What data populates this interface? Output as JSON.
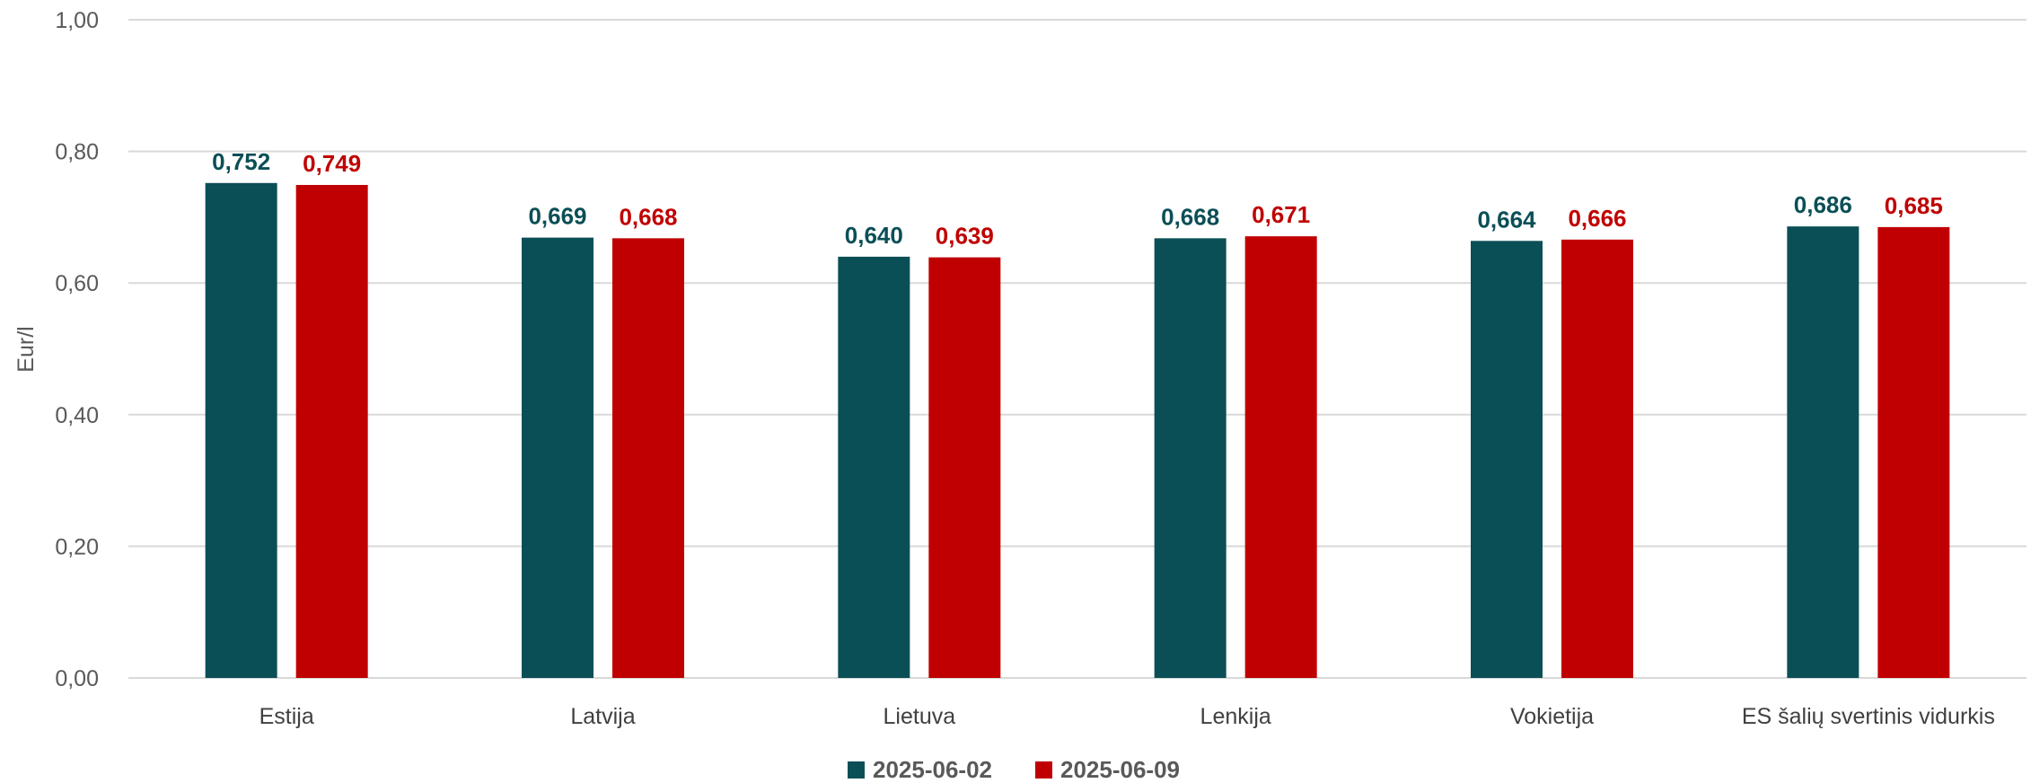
{
  "chart_data": {
    "type": "bar",
    "categories": [
      "Estija",
      "Latvija",
      "Lietuva",
      "Lenkija",
      "Vokietija",
      "ES šalių svertinis vidurkis"
    ],
    "series": [
      {
        "name": "2025-06-02",
        "color": "#0b4f56",
        "values": [
          0.752,
          0.669,
          0.64,
          0.668,
          0.664,
          0.686
        ],
        "labels": [
          "0,752",
          "0,669",
          "0,640",
          "0,668",
          "0,664",
          "0,686"
        ]
      },
      {
        "name": "2025-06-09",
        "color": "#c00000",
        "values": [
          0.749,
          0.668,
          0.639,
          0.671,
          0.666,
          0.685
        ],
        "labels": [
          "0,749",
          "0,668",
          "0,639",
          "0,671",
          "0,666",
          "0,685"
        ]
      }
    ],
    "ylabel": "Eur/l",
    "ylim": [
      0,
      1.0
    ],
    "yticks": [
      0,
      0.2,
      0.4,
      0.6,
      0.8,
      1.0
    ],
    "ytick_labels": [
      "0,00",
      "0,20",
      "0,40",
      "0,60",
      "0,80",
      "1,00"
    ],
    "grid": true,
    "legend_position": "bottom"
  }
}
